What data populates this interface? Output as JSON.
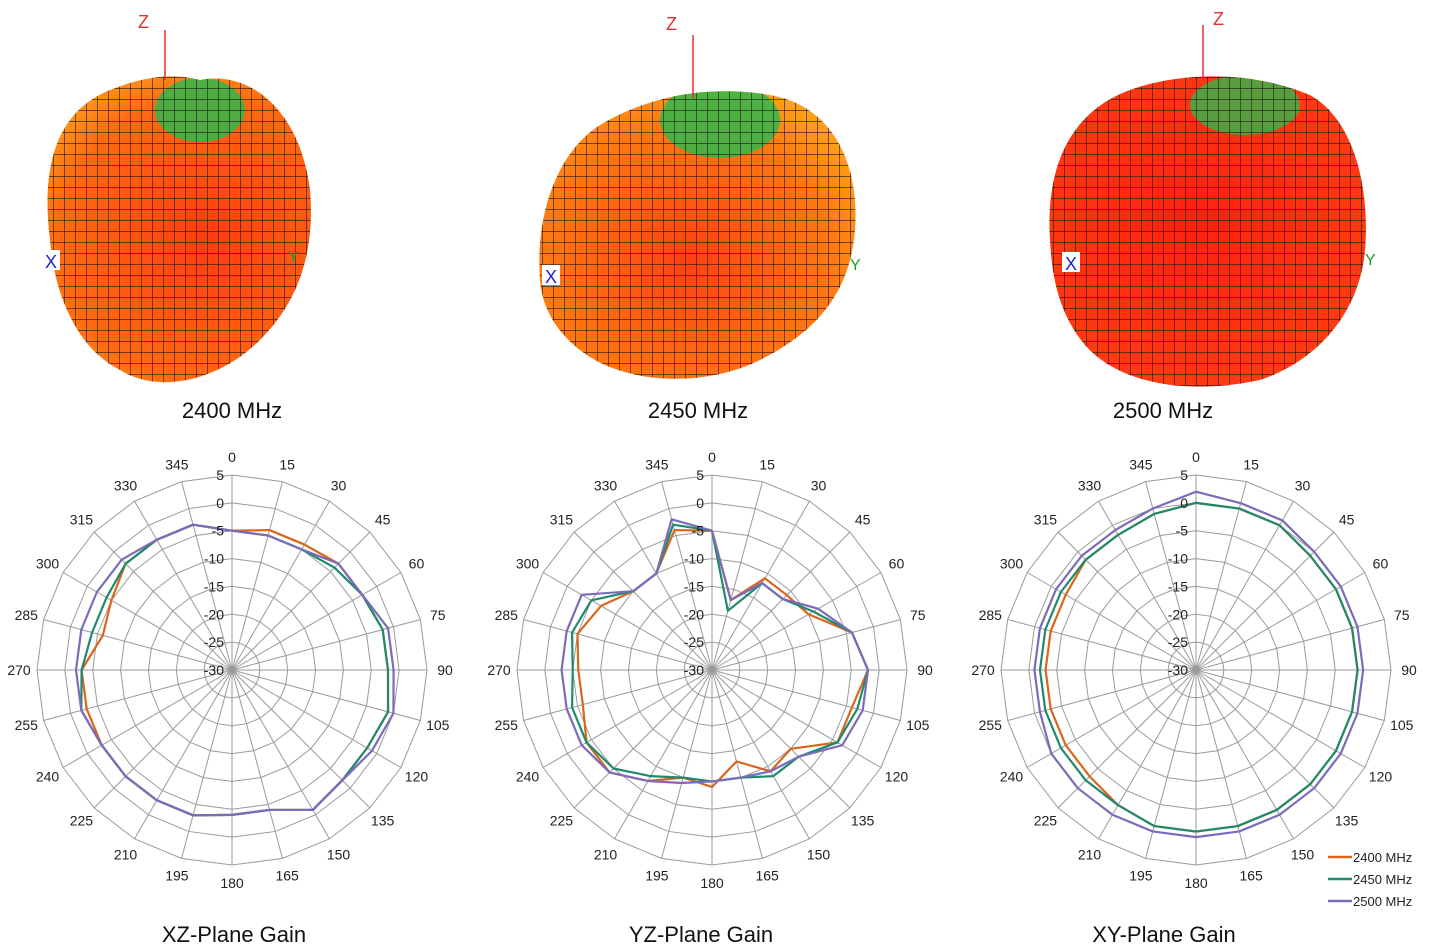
{
  "patterns_3d": [
    {
      "label": "2400 MHz",
      "axis_z": "Z",
      "axis_x": "X",
      "axis_y": "Y"
    },
    {
      "label": "2450 MHz",
      "axis_z": "Z",
      "axis_x": "X",
      "axis_y": "Y"
    },
    {
      "label": "2500 MHz",
      "axis_z": "Z",
      "axis_x": "X",
      "axis_y": "Y"
    }
  ],
  "legend": [
    {
      "name": "2400 MHz",
      "color": "#d9661a"
    },
    {
      "name": "2450 MHz",
      "color": "#1e8a6e"
    },
    {
      "name": "2500 MHz",
      "color": "#7b6bb8"
    }
  ],
  "chart_data": [
    {
      "type": "polar-line",
      "title": "XZ-Plane Gain",
      "angles": [
        0,
        15,
        30,
        45,
        60,
        75,
        90,
        105,
        120,
        135,
        150,
        165,
        180,
        195,
        210,
        225,
        240,
        255,
        270,
        285,
        300,
        315,
        330,
        345
      ],
      "radial_ticks": [
        5,
        0,
        -5,
        -10,
        -15,
        -20,
        -25,
        -30
      ],
      "rlim": [
        -30,
        5
      ],
      "series": [
        {
          "name": "2400 MHz",
          "values": [
            -5,
            -4,
            -4,
            -3,
            -3,
            -2,
            -2,
            -1,
            -2,
            -2,
            -1,
            -4,
            -4,
            -3,
            -3,
            -3,
            -3,
            -3,
            -3,
            -6,
            -5,
            -3,
            -3,
            -3
          ]
        },
        {
          "name": "2450 MHz",
          "values": [
            -5,
            -5,
            -5,
            -4,
            -3,
            -2,
            -2,
            -1,
            -2,
            -2,
            -1,
            -4,
            -4,
            -3,
            -3,
            -3,
            -3,
            -2,
            -3,
            -4,
            -4,
            -3,
            -3,
            -3
          ]
        },
        {
          "name": "2500 MHz",
          "values": [
            -5,
            -5,
            -5,
            -3,
            -3,
            -1,
            -1,
            0,
            -1,
            -2,
            -1,
            -4,
            -4,
            -3,
            -3,
            -3,
            -3,
            -2,
            -2,
            -2,
            -2,
            -2,
            -3,
            -3
          ]
        }
      ]
    },
    {
      "type": "polar-line",
      "title": "YZ-Plane Gain",
      "angles": [
        0,
        15,
        30,
        45,
        60,
        75,
        90,
        105,
        120,
        135,
        150,
        165,
        180,
        195,
        210,
        225,
        240,
        255,
        270,
        285,
        300,
        315,
        330,
        345
      ],
      "radial_ticks": [
        5,
        0,
        -5,
        -10,
        -15,
        -20,
        -25,
        -30
      ],
      "rlim": [
        -30,
        5
      ],
      "series": [
        {
          "name": "2400 MHz",
          "values": [
            -5,
            -17,
            -11,
            -11,
            -10,
            -4,
            -2,
            -4,
            -4,
            -10,
            -9,
            -13,
            -9,
            -10,
            -7,
            -4,
            -4,
            -6,
            -6,
            -5,
            -7,
            -10,
            -10,
            -4
          ]
        },
        {
          "name": "2450 MHz",
          "values": [
            -5,
            -19,
            -12,
            -12,
            -9,
            -4,
            -2,
            -3,
            -4,
            -8,
            -8,
            -10,
            -10,
            -10,
            -8,
            -5,
            -4,
            -4,
            -5,
            -4,
            -5,
            -10,
            -10,
            -3
          ]
        },
        {
          "name": "2500 MHz",
          "values": [
            -5,
            -17,
            -12,
            -12,
            -8,
            -4,
            -2,
            -2,
            -3,
            -8,
            -9,
            -10,
            -10,
            -9,
            -7,
            -4,
            -3,
            -3,
            -3,
            -3,
            -3,
            -10,
            -10,
            -2
          ]
        }
      ]
    },
    {
      "type": "polar-line",
      "title": "XY-Plane Gain",
      "angles": [
        0,
        15,
        30,
        45,
        60,
        75,
        90,
        105,
        120,
        135,
        150,
        165,
        180,
        195,
        210,
        225,
        240,
        255,
        270,
        285,
        300,
        315,
        330,
        345
      ],
      "radial_ticks": [
        5,
        0,
        -5,
        -10,
        -15,
        -20,
        -25,
        -30
      ],
      "rlim": [
        -30,
        5
      ],
      "series": [
        {
          "name": "2400 MHz",
          "values": [
            0,
            0,
            0,
            -1,
            -1,
            -1,
            -1,
            -1,
            -1,
            -1,
            -1,
            -1,
            -1,
            -1,
            -2,
            -3,
            -3,
            -3,
            -3,
            -3,
            -3,
            -2,
            -2,
            -1
          ]
        },
        {
          "name": "2450 MHz",
          "values": [
            0,
            0,
            0,
            -1,
            -1,
            -1,
            -1,
            -1,
            -1,
            -1,
            -1,
            -1,
            -1,
            -1,
            -2,
            -2,
            -2,
            -2,
            -2,
            -2,
            -2,
            -2,
            -2,
            -1
          ]
        },
        {
          "name": "2500 MHz",
          "values": [
            2,
            1,
            1,
            0,
            0,
            0,
            0,
            0,
            0,
            0,
            0,
            0,
            0,
            0,
            0,
            0,
            0,
            -1,
            -1,
            -1,
            -1,
            -1,
            -1,
            0
          ]
        }
      ]
    }
  ]
}
